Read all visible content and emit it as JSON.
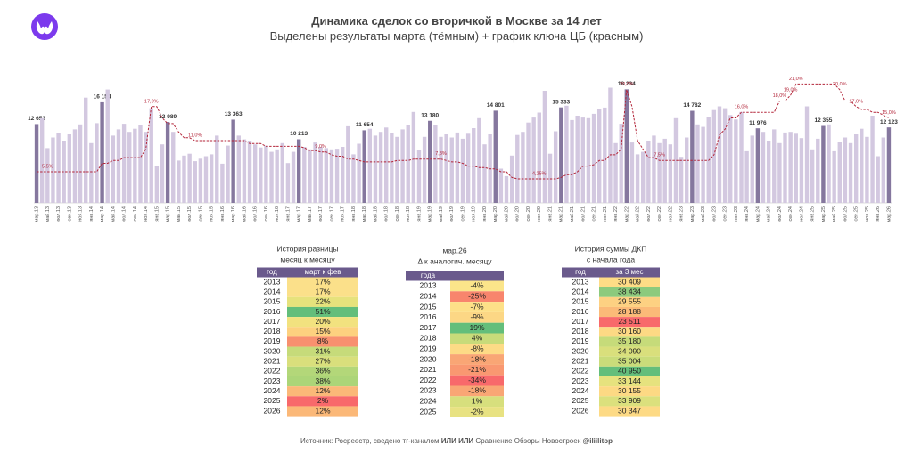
{
  "chart_data": {
    "type": "bar",
    "title": "Динамика сделок со вторичкой в Москве за 14 лет",
    "subtitle": "Выделены результаты марта (тёмным) + график ключа ЦБ (красным)",
    "categories": [
      "мар.13",
      null,
      "май.13",
      null,
      "июл.13",
      null,
      "сен.13",
      null,
      "ноя.13",
      null,
      "янв.14",
      null,
      "мар.14",
      null,
      "май.14",
      null,
      "июл.14",
      null,
      "сен.14",
      null,
      "ноя.14",
      null,
      "янв.15",
      null,
      "мар.15",
      null,
      "май.15",
      null,
      "июл.15",
      null,
      "сен.15",
      null,
      "ноя.15",
      null,
      "янв.16",
      null,
      "мар.16",
      null,
      "май.16",
      null,
      "июл.16",
      null,
      "сен.16",
      null,
      "ноя.16",
      null,
      "янв.17",
      null,
      "мар.17",
      null,
      "май.17",
      null,
      "июл.17",
      null,
      "сен.17",
      null,
      "ноя.17",
      null,
      "янв.18",
      null,
      "мар.18",
      null,
      "май.18",
      null,
      "июл.18",
      null,
      "сен.18",
      null,
      "ноя.18",
      null,
      "янв.19",
      null,
      "мар.19",
      null,
      "май.19",
      null,
      "июл.19",
      null,
      "сен.19",
      null,
      "ноя.19",
      null,
      "янв.20",
      null,
      "мар.20",
      null,
      "май.20",
      null,
      "июл.20",
      null,
      "сен.20",
      null,
      "ноя.20",
      null,
      "янв.21",
      null,
      "мар.21",
      null,
      "май.21",
      null,
      "июл.21",
      null,
      "сен.21",
      null,
      "ноя.21",
      null,
      "янв.22",
      null,
      "мар.22",
      null,
      "май.22",
      null,
      "июл.22",
      null,
      "сен.22",
      null,
      "ноя.22",
      null,
      "янв.23",
      null,
      "мар.23",
      null,
      "май.23",
      null,
      "июл.23",
      null,
      "сен.23",
      null,
      "ноя.23",
      null,
      "янв.24",
      null,
      "мар.24",
      null,
      "май.24",
      null,
      "июл.24",
      null,
      "сен.24",
      null,
      "ноя.24",
      null,
      "янв.25",
      null,
      "мар.25",
      null,
      "май.25",
      null,
      "июл.25",
      null,
      "сен.25",
      null,
      "ноя.25",
      null,
      "янв.26",
      null,
      "мар.26"
    ],
    "ylim": [
      0,
      20000
    ],
    "y2lim": [
      0,
      22
    ],
    "series": [
      {
        "color": "#d3c8e0",
        "highlight_color": "#85779e",
        "values": [
          12653,
          13600,
          8800,
          10500,
          11200,
          10000,
          11000,
          11800,
          12600,
          16900,
          9600,
          12800,
          16154,
          18200,
          10800,
          11800,
          12700,
          11400,
          11900,
          12500,
          11400,
          15200,
          5900,
          9400,
          12989,
          11400,
          6800,
          7600,
          7900,
          6700,
          7100,
          7500,
          7800,
          10800,
          6300,
          9200,
          13363,
          10800,
          10200,
          10000,
          9400,
          8900,
          9200,
          8200,
          8600,
          9600,
          6400,
          8200,
          10213,
          9000,
          8600,
          9700,
          9000,
          8800,
          8600,
          8700,
          9000,
          12300,
          7800,
          9500,
          11654,
          11900,
          10800,
          11400,
          12100,
          11200,
          10600,
          11800,
          12500,
          14600,
          8500,
          10600,
          13180,
          12500,
          10600,
          11000,
          10500,
          11300,
          10300,
          11100,
          12000,
          13600,
          9400,
          11000,
          14801,
          5500,
          4300,
          7600,
          10900,
          11400,
          12900,
          13700,
          14500,
          18000,
          7900,
          11500,
          15333,
          15600,
          13300,
          14000,
          13700,
          13600,
          14300,
          15100,
          15300,
          18500,
          9600,
          12700,
          18234,
          9700,
          7800,
          8200,
          10000,
          10800,
          9600,
          10300,
          9400,
          13600,
          7400,
          10500,
          14782,
          12600,
          12200,
          13800,
          14900,
          15500,
          15200,
          14100,
          13400,
          14600,
          8300,
          10800,
          11976,
          11400,
          10000,
          11800,
          9600,
          11300,
          11400,
          11100,
          10400,
          15500,
          8600,
          10300,
          12355,
          12600,
          8300,
          9800,
          10500,
          9600,
          11000,
          11900,
          10600,
          14000,
          7500,
          10500,
          12123
        ],
        "value_labels": [
          "12 653",
          null,
          null,
          null,
          null,
          null,
          null,
          null,
          null,
          null,
          null,
          null,
          "16 154",
          null,
          null,
          null,
          null,
          null,
          null,
          null,
          null,
          null,
          null,
          null,
          "12 989",
          null,
          null,
          null,
          null,
          null,
          null,
          null,
          null,
          null,
          null,
          null,
          "13 363",
          null,
          null,
          null,
          null,
          null,
          null,
          null,
          null,
          null,
          null,
          null,
          "10 213",
          null,
          null,
          null,
          null,
          null,
          null,
          null,
          null,
          null,
          null,
          null,
          "11 654",
          null,
          null,
          null,
          null,
          null,
          null,
          null,
          null,
          null,
          null,
          null,
          "13 180",
          null,
          null,
          null,
          null,
          null,
          null,
          null,
          null,
          null,
          null,
          null,
          "14 801",
          null,
          null,
          null,
          null,
          null,
          null,
          null,
          null,
          null,
          null,
          null,
          "15 333",
          null,
          null,
          null,
          null,
          null,
          null,
          null,
          null,
          null,
          null,
          null,
          "18 234",
          null,
          null,
          null,
          null,
          null,
          null,
          null,
          null,
          null,
          null,
          null,
          "14 782",
          null,
          null,
          null,
          null,
          null,
          null,
          null,
          null,
          null,
          null,
          null,
          "11 976",
          null,
          null,
          null,
          null,
          null,
          null,
          null,
          null,
          null,
          null,
          null,
          "12 355",
          null,
          null,
          null,
          null,
          null,
          null,
          null,
          null,
          null,
          null,
          null,
          "12 123"
        ]
      },
      {
        "type": "line",
        "axis": "y2",
        "color": "#b3263a",
        "values": [
          5.5,
          5.5,
          5.5,
          5.5,
          5.5,
          5.5,
          5.5,
          5.5,
          5.5,
          5.5,
          5.5,
          5.5,
          7,
          7,
          7.5,
          7.5,
          8,
          8,
          8,
          8,
          9.5,
          17,
          17,
          15,
          14,
          14,
          12.5,
          11.5,
          11.5,
          11,
          11,
          11,
          11,
          11,
          11,
          11,
          11,
          11,
          11,
          10.5,
          10.5,
          10.5,
          10,
          10,
          10,
          10,
          10,
          10,
          10,
          9.75,
          9.25,
          9.25,
          9,
          9,
          8.5,
          8.25,
          8.25,
          7.75,
          7.75,
          7.5,
          7.25,
          7.25,
          7.25,
          7.25,
          7.25,
          7.25,
          7.5,
          7.5,
          7.5,
          7.75,
          7.75,
          7.75,
          7.75,
          7.75,
          7.75,
          7.5,
          7.25,
          7.25,
          7,
          6.5,
          6.5,
          6.25,
          6.25,
          6,
          6,
          5.5,
          5.5,
          4.5,
          4.25,
          4.25,
          4.25,
          4.25,
          4.25,
          4.25,
          4.25,
          4.25,
          4.5,
          5,
          5,
          5.5,
          6.5,
          6.5,
          6.75,
          7.5,
          7.5,
          8.5,
          8.5,
          9.5,
          20,
          17,
          11,
          9.5,
          8,
          8,
          7.5,
          7.5,
          7.5,
          7.5,
          7.5,
          7.5,
          7.5,
          7.5,
          7.5,
          7.5,
          8.5,
          12,
          13,
          15,
          15,
          16,
          16,
          16,
          16,
          16,
          16,
          16,
          18,
          18,
          19,
          21,
          21,
          21,
          21,
          21,
          21,
          21,
          21,
          20,
          18,
          18,
          17,
          16.5,
          16.5,
          16,
          16,
          15.5,
          15
        ],
        "value_labels": [
          null,
          null,
          "5,5%",
          null,
          null,
          null,
          null,
          null,
          null,
          null,
          null,
          null,
          null,
          null,
          null,
          null,
          null,
          null,
          null,
          null,
          null,
          "17,0%",
          null,
          null,
          null,
          null,
          null,
          null,
          null,
          "11,0%",
          null,
          null,
          null,
          null,
          null,
          null,
          null,
          null,
          null,
          null,
          null,
          null,
          null,
          null,
          null,
          null,
          null,
          null,
          null,
          null,
          null,
          null,
          "9,0%",
          null,
          null,
          null,
          null,
          null,
          null,
          null,
          null,
          null,
          null,
          null,
          null,
          null,
          null,
          null,
          null,
          null,
          null,
          null,
          null,
          null,
          "7,8%",
          null,
          null,
          null,
          null,
          null,
          null,
          null,
          null,
          null,
          null,
          null,
          null,
          null,
          null,
          null,
          null,
          null,
          "4,25%",
          null,
          null,
          null,
          null,
          null,
          null,
          null,
          null,
          null,
          null,
          null,
          null,
          null,
          null,
          null,
          "20,0%",
          null,
          null,
          null,
          null,
          null,
          "7,5%",
          null,
          null,
          null,
          null,
          null,
          null,
          null,
          null,
          null,
          null,
          null,
          null,
          null,
          null,
          "16,0%",
          null,
          null,
          null,
          null,
          null,
          null,
          "18,0%",
          null,
          "19,0%",
          "21,0%",
          null,
          null,
          null,
          null,
          null,
          null,
          null,
          "20,0%",
          null,
          null,
          "17,0%",
          null,
          null,
          null,
          null,
          null,
          "15,0%"
        ]
      }
    ]
  },
  "tables": [
    {
      "title": [
        "История разницы",
        "месяц к месяцу"
      ],
      "columns": [
        "год",
        "март к фев"
      ],
      "rows": [
        [
          2013,
          "17%"
        ],
        [
          2014,
          "17%"
        ],
        [
          2015,
          "22%"
        ],
        [
          2016,
          "51%"
        ],
        [
          2017,
          "20%"
        ],
        [
          2018,
          "15%"
        ],
        [
          2019,
          "8%"
        ],
        [
          2020,
          "31%"
        ],
        [
          2021,
          "27%"
        ],
        [
          2022,
          "36%"
        ],
        [
          2023,
          "38%"
        ],
        [
          2024,
          "12%"
        ],
        [
          2025,
          "2%"
        ],
        [
          2026,
          "12%"
        ]
      ],
      "cell_colors": [
        "#fbe08a",
        "#fbe08a",
        "#e6e27c",
        "#63be7b",
        "#f2e27f",
        "#fdd17f",
        "#f8906f",
        "#c6db7a",
        "#d9df7c",
        "#b3d779",
        "#acd578",
        "#fbb878",
        "#f8696b",
        "#fbb878"
      ]
    },
    {
      "title": [
        "мар.26",
        "Δ к аналогич. месяцу"
      ],
      "columns": [
        "года"
      ],
      "rows": [
        [
          2013,
          "-4%"
        ],
        [
          2014,
          "-25%"
        ],
        [
          2015,
          "-7%"
        ],
        [
          2016,
          "-9%"
        ],
        [
          2017,
          "19%"
        ],
        [
          2018,
          "4%"
        ],
        [
          2019,
          "-8%"
        ],
        [
          2020,
          "-18%"
        ],
        [
          2021,
          "-21%"
        ],
        [
          2022,
          "-34%"
        ],
        [
          2023,
          "-18%"
        ],
        [
          2024,
          "1%"
        ],
        [
          2025,
          "-2%"
        ]
      ],
      "cell_colors": [
        "#fbe58a",
        "#f8856d",
        "#fde088",
        "#fcd785",
        "#63be7b",
        "#c8db7a",
        "#fddb86",
        "#f9a675",
        "#f99871",
        "#f8696b",
        "#f9a675",
        "#d7df7d",
        "#e8e282"
      ]
    },
    {
      "title": [
        "История суммы ДКП",
        "с начала года"
      ],
      "columns": [
        "год",
        "за 3 мес"
      ],
      "rows": [
        [
          2013,
          "30 409"
        ],
        [
          2014,
          "38 434"
        ],
        [
          2015,
          "29 555"
        ],
        [
          2016,
          "28 188"
        ],
        [
          2017,
          "23 511"
        ],
        [
          2018,
          "30 160"
        ],
        [
          2019,
          "35 180"
        ],
        [
          2020,
          "34 090"
        ],
        [
          2021,
          "35 004"
        ],
        [
          2022,
          "40 950"
        ],
        [
          2023,
          "33 144"
        ],
        [
          2024,
          "30 155"
        ],
        [
          2025,
          "33 909"
        ],
        [
          2026,
          "30 347"
        ]
      ],
      "cell_colors": [
        "#fedc86",
        "#8cca7d",
        "#fdd182",
        "#fbba78",
        "#f8696b",
        "#fdd984",
        "#c6db7a",
        "#d9df7c",
        "#c9dc7a",
        "#63be7b",
        "#e6e27e",
        "#fdd984",
        "#dbe07d",
        "#fdda85"
      ]
    }
  ],
  "footer": {
    "source": "Источник: Росреестр, сведено тг-каналом",
    "brand": "ИЛИ ИЛИ",
    "channels": "Сравнение Обзоры Новостроек",
    "handle": "@iliilitop"
  }
}
